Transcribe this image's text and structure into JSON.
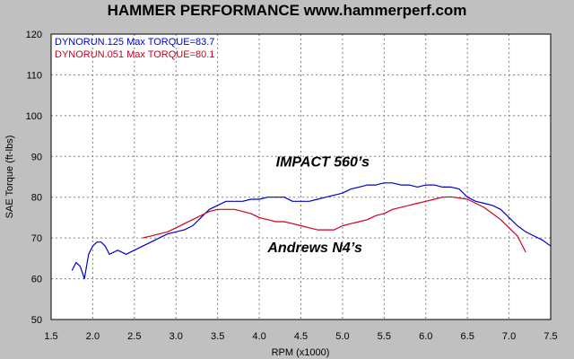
{
  "chart_data": {
    "type": "line",
    "title": "HAMMER PERFORMANCE www.hammerperf.com",
    "xlabel": "RPM (x1000)",
    "ylabel": "SAE Torque (ft-lbs)",
    "xlim": [
      1.5,
      7.5
    ],
    "ylim": [
      50,
      120
    ],
    "xticks": [
      "1.5",
      "2.0",
      "2.5",
      "3.0",
      "3.5",
      "4.0",
      "4.5",
      "5.0",
      "5.5",
      "6.0",
      "6.5",
      "7.0",
      "7.5"
    ],
    "yticks": [
      "50",
      "60",
      "70",
      "80",
      "90",
      "100",
      "110",
      "120"
    ],
    "grid": true,
    "legend_position": "top-left",
    "series": [
      {
        "name": "DYNORUN.125",
        "legend": "DYNORUN.125  Max TORQUE=83.7",
        "color": "#0000cc",
        "x": [
          1.75,
          1.8,
          1.85,
          1.9,
          1.95,
          2.0,
          2.05,
          2.1,
          2.15,
          2.2,
          2.3,
          2.4,
          2.5,
          2.6,
          2.7,
          2.8,
          2.9,
          3.0,
          3.1,
          3.2,
          3.3,
          3.4,
          3.5,
          3.6,
          3.7,
          3.8,
          3.9,
          4.0,
          4.1,
          4.2,
          4.3,
          4.4,
          4.5,
          4.6,
          4.7,
          4.8,
          4.9,
          5.0,
          5.1,
          5.2,
          5.3,
          5.4,
          5.5,
          5.6,
          5.7,
          5.8,
          5.9,
          6.0,
          6.1,
          6.2,
          6.3,
          6.4,
          6.5,
          6.6,
          6.7,
          6.8,
          6.9,
          7.0,
          7.1,
          7.2,
          7.3,
          7.4,
          7.5
        ],
        "y": [
          62,
          64,
          63,
          60,
          66,
          68,
          69,
          69,
          68,
          66,
          67,
          66,
          67,
          68,
          69,
          70,
          71,
          71.5,
          72,
          73,
          75,
          77,
          78,
          79,
          79,
          79,
          79.5,
          79.5,
          80,
          80,
          80,
          79,
          79,
          79,
          79.5,
          80,
          80.5,
          81,
          82,
          82.5,
          83,
          83,
          83.5,
          83.5,
          83,
          83,
          82.5,
          83,
          83,
          82.5,
          82.5,
          82,
          80,
          79,
          78.5,
          78,
          77,
          75,
          73,
          71.5,
          70.5,
          69.5,
          68
        ]
      },
      {
        "name": "DYNORUN.051",
        "legend": "DYNORUN.051  Max TORQUE=80.1",
        "color": "#cc0022",
        "x": [
          2.6,
          2.7,
          2.8,
          2.9,
          3.0,
          3.1,
          3.2,
          3.3,
          3.4,
          3.5,
          3.6,
          3.7,
          3.8,
          3.9,
          4.0,
          4.1,
          4.2,
          4.3,
          4.4,
          4.5,
          4.6,
          4.7,
          4.8,
          4.9,
          5.0,
          5.1,
          5.2,
          5.3,
          5.4,
          5.5,
          5.6,
          5.7,
          5.8,
          5.9,
          6.0,
          6.1,
          6.2,
          6.3,
          6.4,
          6.5,
          6.6,
          6.7,
          6.8,
          6.9,
          7.0,
          7.1,
          7.2
        ],
        "y": [
          70,
          70.5,
          71,
          71.5,
          72.5,
          73.5,
          74.5,
          75.5,
          76.5,
          77,
          77,
          77,
          76.5,
          76,
          75,
          74.5,
          74,
          74,
          73.5,
          73,
          72.5,
          72,
          72,
          72,
          73,
          73.5,
          74,
          74.5,
          75.5,
          76,
          77,
          77.5,
          78,
          78.5,
          79,
          79.5,
          80,
          80.1,
          79.8,
          79.5,
          78.5,
          77.5,
          76,
          74.5,
          72.5,
          70.5,
          66.5
        ]
      }
    ],
    "annotations": [
      {
        "text": "IMPACT 560’s",
        "x": 4.2,
        "y": 87.5
      },
      {
        "text": "Andrews N4’s",
        "x": 4.1,
        "y": 66.5
      }
    ]
  }
}
